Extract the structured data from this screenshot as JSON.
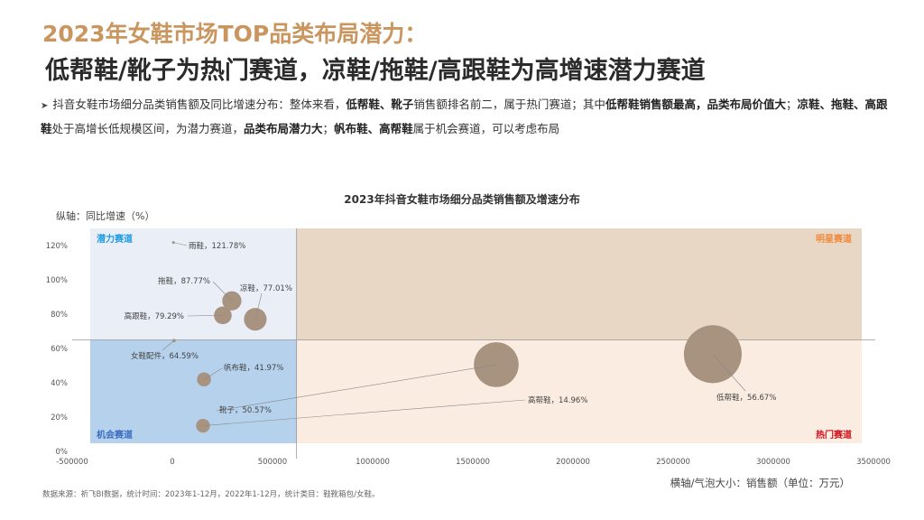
{
  "header": {
    "title": "2023年女鞋市场TOP品类布局潜力：",
    "subtitle": "低帮鞋/靴子为热门赛道，凉鞋/拖鞋/高跟鞋为高增速潜力赛道"
  },
  "description": [
    {
      "text": "抖音女鞋市场细分品类销售额及同比增速分布：整体来看，",
      "bold": false
    },
    {
      "text": "低帮鞋、靴子",
      "bold": true
    },
    {
      "text": "销售额排名前二，属于热门赛道；其中",
      "bold": false
    },
    {
      "text": "低帮鞋销售额最高，品类布局价值大",
      "bold": true
    },
    {
      "text": "；",
      "bold": false
    },
    {
      "text": "凉鞋、拖鞋、高跟鞋",
      "bold": true
    },
    {
      "text": "处于高增长低规模区间，为潜力赛道，",
      "bold": false
    },
    {
      "text": "品类布局潜力大",
      "bold": true
    },
    {
      "text": "；",
      "bold": false
    },
    {
      "text": "帆布鞋、高帮鞋",
      "bold": true
    },
    {
      "text": "属于机会赛道，可以考虑布局",
      "bold": false
    }
  ],
  "footer": {
    "source": "数据来源：祈飞BI数据，统计时间：2023年1-12月，2022年1-12月，统计类目：鞋靴箱包/女鞋。"
  },
  "chart_data": {
    "type": "scatter",
    "subtype": "bubble",
    "title": "2023年抖音女鞋市场细分品类销售额及增速分布",
    "ylabel": "纵轴：同比增速（%）",
    "xlabel": "横轴/气泡大小：销售额（单位：万元）",
    "xlim": [
      -500000,
      3500000
    ],
    "ylim": [
      0,
      125
    ],
    "xticks": [
      "-500000",
      "0",
      "500000",
      "1000000",
      "1500000",
      "2000000",
      "2500000",
      "3000000",
      "3500000"
    ],
    "xtick_values": [
      -500000,
      0,
      500000,
      1000000,
      1500000,
      2000000,
      2500000,
      3000000,
      3500000
    ],
    "yticks": [
      "0%",
      "20%",
      "40%",
      "60%",
      "80%",
      "100%",
      "120%"
    ],
    "ytick_values": [
      0,
      20,
      40,
      60,
      80,
      100,
      120
    ],
    "quadrant_split": {
      "x": 620000,
      "y": 65
    },
    "quadrants": [
      {
        "name": "潜力赛道",
        "position": "top-left",
        "color": "#e9eef7",
        "label_color": "#1e9be0"
      },
      {
        "name": "明星赛道",
        "position": "top-right",
        "color": "#e9d7c6",
        "label_color": "#f08a3c"
      },
      {
        "name": "机会赛道",
        "position": "bottom-left",
        "color": "#b5d1ec",
        "label_color": "#3a6cc0"
      },
      {
        "name": "热门赛道",
        "position": "bottom-right",
        "color": "#fbece1",
        "label_color": "#d0121b"
      }
    ],
    "bubble_color": "#a89280",
    "points": [
      {
        "name": "雨鞋",
        "x": 5000,
        "y": 121.78,
        "label": "雨鞋，121.78%"
      },
      {
        "name": "拖鞋",
        "x": 297000,
        "y": 87.77,
        "label": "拖鞋，87.77%"
      },
      {
        "name": "凉鞋",
        "x": 414000,
        "y": 77.01,
        "label": "凉鞋，77.01%"
      },
      {
        "name": "高跟鞋",
        "x": 252000,
        "y": 79.29,
        "label": "高跟鞋，79.29%"
      },
      {
        "name": "女鞋配件",
        "x": 9000,
        "y": 64.59,
        "label": "女鞋配件，64.59%"
      },
      {
        "name": "帆布鞋",
        "x": 158000,
        "y": 41.97,
        "label": "帆布鞋，41.97%"
      },
      {
        "name": "高帮鞋",
        "x": 153000,
        "y": 14.96,
        "label": "高帮鞋，14.96%"
      },
      {
        "name": "靴子",
        "x": 1617000,
        "y": 50.57,
        "label": "靴子，50.57%"
      },
      {
        "name": "低帮鞋",
        "x": 2698000,
        "y": 56.67,
        "label": "低帮鞋，56.67%"
      }
    ]
  }
}
